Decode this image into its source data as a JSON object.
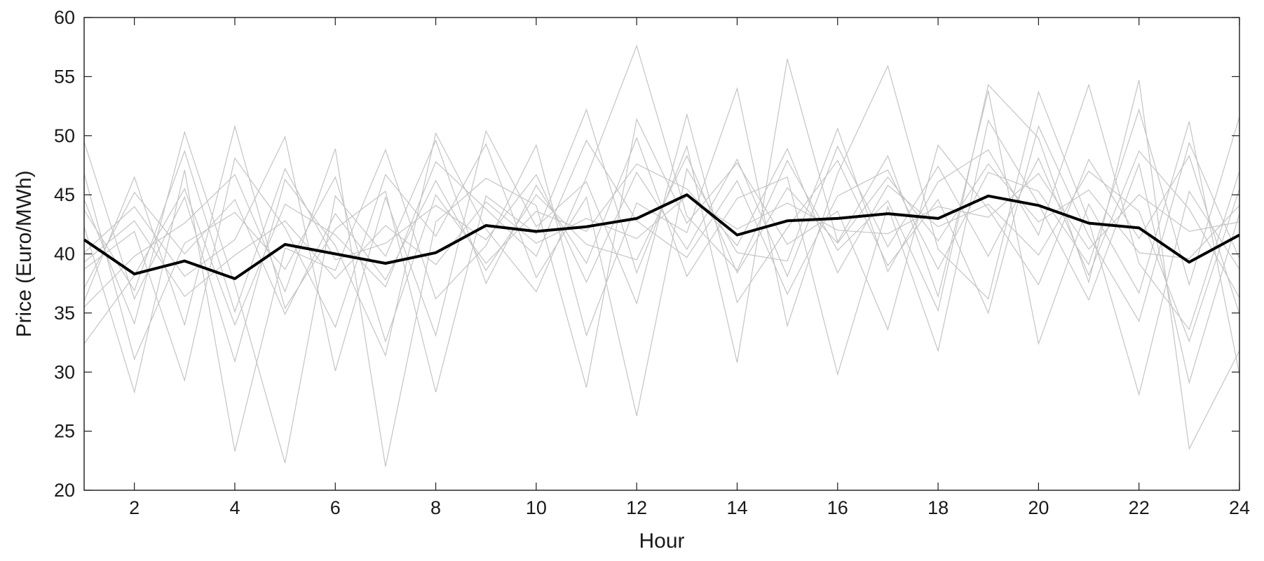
{
  "chart_data": {
    "type": "line",
    "title": "",
    "xlabel": "Hour",
    "ylabel": "Price (Euro/MWh)",
    "xlim": [
      1,
      24
    ],
    "ylim": [
      20,
      60
    ],
    "x_ticks": [
      2,
      4,
      6,
      8,
      10,
      12,
      14,
      16,
      18,
      20,
      22,
      24
    ],
    "y_ticks": [
      20,
      25,
      30,
      35,
      40,
      45,
      50,
      55,
      60
    ],
    "grid": false,
    "legend": "none",
    "colors": {
      "mean": "#000000",
      "scenarios": "#c4c4c4",
      "axes": "#1a1a1a"
    },
    "x": [
      1,
      2,
      3,
      4,
      5,
      6,
      7,
      8,
      9,
      10,
      11,
      12,
      13,
      14,
      15,
      16,
      17,
      18,
      19,
      20,
      21,
      22,
      23,
      24
    ],
    "mean_series": {
      "values": [
        41.2,
        38.3,
        39.4,
        37.9,
        40.8,
        40.0,
        39.2,
        40.1,
        42.4,
        41.9,
        42.3,
        43.0,
        45.0,
        41.6,
        42.8,
        43.0,
        43.4,
        43.0,
        44.9,
        44.1,
        42.6,
        42.2,
        39.3,
        41.6
      ]
    },
    "scenario_series": [
      {
        "values": [
          49.5,
          36.2,
          44.8,
          30.9,
          46.3,
          40.7,
          31.4,
          50.2,
          42.1,
          36.8,
          46.5,
          57.6,
          43.2,
          38.6,
          47.9,
          40.3,
          44.5,
          35.2,
          54.3,
          49.8,
          37.6,
          54.7,
          23.5,
          31.8
        ]
      },
      {
        "values": [
          36.0,
          46.5,
          34.0,
          50.8,
          35.4,
          42.1,
          45.3,
          28.3,
          44.9,
          41.7,
          52.2,
          38.4,
          49.1,
          30.8,
          56.5,
          41.0,
          48.3,
          36.4,
          53.8,
          32.4,
          44.2,
          36.7,
          51.2,
          29.8
        ]
      },
      {
        "values": [
          42.3,
          28.3,
          47.1,
          23.3,
          40.5,
          38.6,
          48.8,
          36.2,
          40.7,
          49.2,
          33.1,
          44.3,
          41.8,
          54.0,
          33.9,
          46.8,
          55.9,
          40.4,
          36.2,
          53.7,
          42.8,
          28.1,
          45.3,
          38.7
        ]
      },
      {
        "values": [
          38.7,
          41.9,
          29.3,
          48.1,
          42.2,
          33.8,
          46.7,
          41.5,
          49.3,
          38.0,
          44.8,
          26.3,
          47.2,
          40.1,
          39.4,
          50.6,
          38.5,
          46.1,
          48.8,
          41.6,
          54.3,
          39.2,
          33.6,
          47.0
        ]
      },
      {
        "values": [
          44.6,
          34.1,
          50.3,
          37.4,
          22.3,
          44.9,
          39.8,
          49.6,
          37.5,
          45.8,
          39.2,
          49.8,
          38.1,
          44.7,
          46.5,
          29.8,
          44.0,
          31.8,
          51.3,
          44.2,
          36.1,
          47.6,
          29.1,
          43.4
        ]
      },
      {
        "values": [
          35.5,
          39.8,
          42.6,
          46.7,
          36.8,
          48.9,
          22.0,
          42.7,
          46.4,
          44.1,
          28.7,
          51.4,
          42.6,
          47.7,
          40.8,
          43.6,
          33.6,
          49.2,
          43.8,
          37.4,
          48.0,
          41.3,
          48.3,
          34.9
        ]
      },
      {
        "values": [
          40.1,
          44.0,
          38.1,
          41.2,
          49.9,
          30.1,
          44.8,
          33.1,
          50.4,
          42.3,
          46.1,
          35.8,
          51.8,
          35.9,
          42.2,
          47.9,
          39.0,
          44.6,
          35.0,
          50.8,
          41.5,
          34.3,
          49.4,
          39.6
        ]
      },
      {
        "values": [
          32.4,
          38.2,
          45.5,
          34.0,
          44.2,
          41.6,
          37.2,
          47.8,
          43.8,
          39.8,
          49.6,
          42.8,
          39.7,
          46.2,
          36.6,
          44.9,
          47.1,
          38.7,
          46.9,
          45.3,
          39.1,
          52.2,
          37.4,
          51.6
        ]
      },
      {
        "values": [
          46.8,
          31.1,
          40.9,
          43.5,
          38.7,
          46.5,
          32.6,
          45.0,
          39.2,
          43.6,
          41.9,
          47.6,
          45.5,
          40.7,
          48.9,
          38.4,
          45.8,
          42.3,
          44.2,
          39.9,
          47.0,
          43.6,
          32.6,
          45.5
        ]
      },
      {
        "values": [
          39.3,
          42.8,
          36.4,
          39.9,
          42.8,
          37.9,
          42.4,
          39.1,
          44.4,
          40.9,
          43.0,
          41.3,
          44.9,
          42.1,
          44.3,
          42.0,
          41.7,
          44.0,
          43.1,
          46.8,
          40.4,
          45.0,
          41.9,
          42.7
        ]
      },
      {
        "values": [
          43.7,
          36.9,
          48.7,
          35.1,
          47.2,
          39.5,
          40.9,
          44.1,
          41.2,
          46.7,
          37.6,
          46.9,
          40.4,
          48.0,
          38.1,
          49.1,
          40.6,
          47.4,
          39.8,
          48.1,
          38.2,
          48.7,
          43.8,
          36.3
        ]
      },
      {
        "values": [
          37.1,
          45.2,
          40.0,
          44.6,
          34.9,
          43.4,
          37.8,
          46.2,
          38.6,
          45.0,
          40.8,
          39.5,
          48.3,
          38.4,
          45.6,
          40.9,
          46.5,
          41.1,
          47.6,
          42.7,
          45.4,
          40.1,
          39.6,
          44.1
        ]
      }
    ]
  }
}
